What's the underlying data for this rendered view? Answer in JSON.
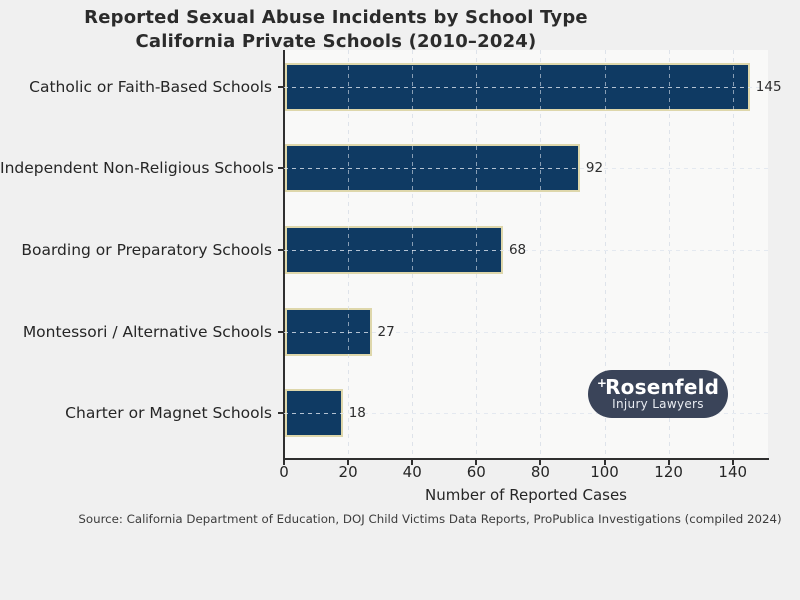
{
  "figure": {
    "background": "#f0f0f0",
    "plot_background": "#f9f9f8"
  },
  "chart_data": {
    "type": "bar",
    "orientation": "horizontal",
    "title_line1": "Reported Sexual Abuse Incidents by School Type",
    "title_line2": "California Private Schools (2010–2024)",
    "categories": [
      "Catholic or Faith-Based Schools",
      "Independent Non-Religious Schools",
      "Boarding or Preparatory Schools",
      "Montessori / Alternative Schools",
      "Charter or Magnet Schools"
    ],
    "values": [
      145,
      92,
      68,
      27,
      18
    ],
    "value_labels": [
      "145",
      "92",
      "68",
      "27",
      "18"
    ],
    "xlabel": "Number of Reported Cases",
    "xticks": [
      0,
      20,
      40,
      60,
      80,
      100,
      120,
      140
    ],
    "xlim": [
      0,
      151
    ],
    "grid": "dashed, both axes",
    "legend": "none",
    "bar_color": "#0f3a63",
    "bar_edge_color": "#ded7ab"
  },
  "source_note": "Source: California Department of Education, DOJ Child Victims Data Reports, ProPublica Investigations (compiled 2024)",
  "logo": {
    "plus_glyph": "+",
    "brand": "Rosenfeld",
    "tagline": "Injury Lawyers",
    "background": "#3a4459"
  }
}
